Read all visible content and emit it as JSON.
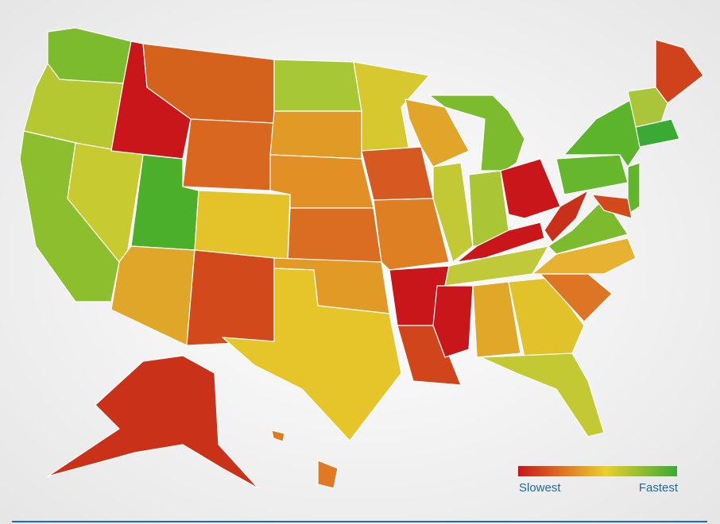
{
  "legend": {
    "low_label": "Slowest",
    "high_label": "Fastest"
  }
}
